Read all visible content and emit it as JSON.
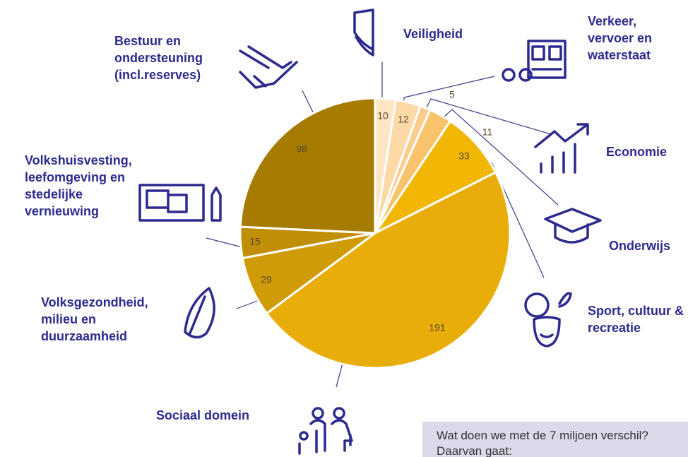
{
  "chart_data": {
    "type": "pie",
    "categories": [
      "Veiligheid",
      "Verkeer, vervoer en waterstaat",
      "Economie",
      "Onderwijs",
      "Sport, cultuur & recreatie",
      "Sociaal domein",
      "Volksgezondheid, milieu en duurzaamheid",
      "Volkshuisvesting, leefomgeving en stedelijke vernieuwing",
      "Bestuur en ondersteuning (incl.reserves)"
    ],
    "values": [
      10,
      12,
      5,
      11,
      33,
      191,
      29,
      15,
      98
    ],
    "colors": [
      "#fde6c4",
      "#fcd9a6",
      "#fbcd8c",
      "#f9c36c",
      "#f2b705",
      "#e8ad08",
      "#cf9b06",
      "#c18f05",
      "#a67c00"
    ]
  },
  "note": {
    "lines": [
      "Wat doen we met de 7 miljoen verschil?",
      "Daarvan gaat:"
    ]
  }
}
